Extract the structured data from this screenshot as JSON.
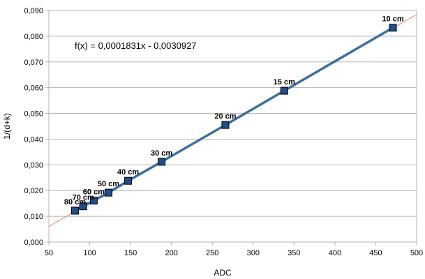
{
  "chart_data": {
    "type": "scatter",
    "xlabel": "ADC",
    "ylabel": "1/(d+k)",
    "xlim": [
      50,
      500
    ],
    "ylim": [
      0,
      0.09
    ],
    "x_ticks": [
      50,
      100,
      150,
      200,
      250,
      300,
      350,
      400,
      450,
      500
    ],
    "x_tick_labels": [
      "50",
      "100",
      "150",
      "200",
      "250",
      "300",
      "350",
      "400",
      "450",
      "500"
    ],
    "y_ticks": [
      0,
      0.01,
      0.02,
      0.03,
      0.04,
      0.05,
      0.06,
      0.07,
      0.08,
      0.09
    ],
    "y_tick_labels": [
      "0,000",
      "0,010",
      "0,020",
      "0,030",
      "0,040",
      "0,050",
      "0,060",
      "0,070",
      "0,080",
      "0,090"
    ],
    "grid": true,
    "equation": "f(x) = 0,0001831x - 0,0030927",
    "trendline": {
      "slope": 0.0001831,
      "intercept": -0.0030927,
      "x_range": [
        50,
        500
      ],
      "color": "#f0826a"
    },
    "series": [
      {
        "line_color": "#3f6f9f",
        "marker_color": "#1f4e8a",
        "points": [
          {
            "x": 82,
            "y": 0.0122,
            "label": "80 cm"
          },
          {
            "x": 92,
            "y": 0.0139,
            "label": "70 cm"
          },
          {
            "x": 105,
            "y": 0.0161,
            "label": "60 cm"
          },
          {
            "x": 123,
            "y": 0.0192,
            "label": "50 cm"
          },
          {
            "x": 147,
            "y": 0.0238,
            "label": "40 cm"
          },
          {
            "x": 188,
            "y": 0.0312,
            "label": "30 cm"
          },
          {
            "x": 266,
            "y": 0.0455,
            "label": "20 cm"
          },
          {
            "x": 338,
            "y": 0.0588,
            "label": "15 cm"
          },
          {
            "x": 471,
            "y": 0.0833,
            "label": "10 cm"
          }
        ]
      }
    ]
  },
  "colors": {
    "grid": "#b3b3b3",
    "axis": "#b3b3b3",
    "marker_edge": "#000000"
  }
}
